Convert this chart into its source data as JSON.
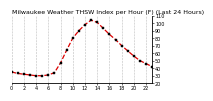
{
  "title": "Milwaukee Weather THSW Index per Hour (F) (Last 24 Hours)",
  "bg_color": "#ffffff",
  "plot_bg_color": "#ffffff",
  "line_color": "#dd0000",
  "marker_color": "#000000",
  "grid_color": "#aaaaaa",
  "text_color": "#000000",
  "spine_color": "#000000",
  "hours": [
    0,
    1,
    2,
    3,
    4,
    5,
    6,
    7,
    8,
    9,
    10,
    11,
    12,
    13,
    14,
    15,
    16,
    17,
    18,
    19,
    20,
    21,
    22,
    23
  ],
  "values": [
    35,
    33,
    32,
    31,
    30,
    30,
    31,
    34,
    47,
    64,
    80,
    90,
    98,
    104,
    101,
    93,
    85,
    78,
    70,
    63,
    56,
    50,
    46,
    42
  ],
  "ylim": [
    20,
    110
  ],
  "ytick_values": [
    20,
    30,
    40,
    50,
    60,
    70,
    80,
    90,
    100,
    110
  ],
  "xlim": [
    0,
    23
  ],
  "xtick_positions": [
    0,
    2,
    4,
    6,
    8,
    10,
    12,
    14,
    16,
    18,
    20,
    22
  ],
  "title_fontsize": 4.5,
  "tick_fontsize": 3.5,
  "linewidth": 0.9,
  "markersize": 1.5
}
